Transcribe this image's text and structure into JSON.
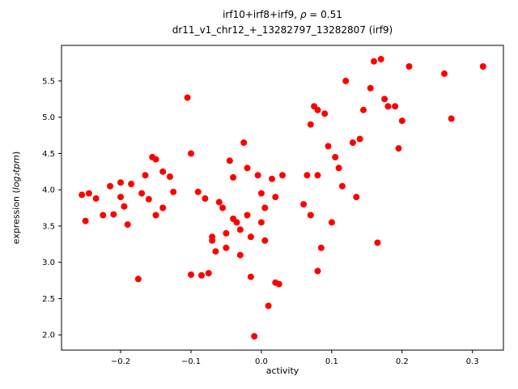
{
  "chart_data": {
    "type": "scatter",
    "title_line1_pre": "irf10+irf8+irf9, ",
    "title_rho": "ρ",
    "title_line1_post": " = 0.51",
    "title_line2": "dr11_v1_chr12_+_13282797_13282807 (irf9)",
    "xlabel": "activity",
    "ylabel_prefix": "expression (",
    "ylabel_math": "log₂tpm",
    "ylabel_suffix": ")",
    "xlim": [
      -0.284,
      0.344
    ],
    "ylim": [
      1.79,
      5.99
    ],
    "xticks": [
      -0.2,
      -0.1,
      0.0,
      0.1,
      0.2,
      0.3
    ],
    "xtick_labels": [
      "−0.2",
      "−0.1",
      "0.0",
      "0.1",
      "0.2",
      "0.3"
    ],
    "yticks": [
      2.0,
      2.5,
      3.0,
      3.5,
      4.0,
      4.5,
      5.0,
      5.5
    ],
    "ytick_labels": [
      "2.0",
      "2.5",
      "3.0",
      "3.5",
      "4.0",
      "4.5",
      "5.0",
      "5.5"
    ],
    "marker_color": "#ff0000",
    "marker_radius": 4,
    "grid": false,
    "legend": null,
    "points": [
      [
        -0.255,
        3.93
      ],
      [
        -0.25,
        3.57
      ],
      [
        -0.245,
        3.95
      ],
      [
        -0.235,
        3.88
      ],
      [
        -0.225,
        3.65
      ],
      [
        -0.215,
        4.05
      ],
      [
        -0.21,
        3.66
      ],
      [
        -0.2,
        3.9
      ],
      [
        -0.2,
        4.1
      ],
      [
        -0.195,
        3.77
      ],
      [
        -0.19,
        3.52
      ],
      [
        -0.185,
        4.08
      ],
      [
        -0.175,
        2.77
      ],
      [
        -0.17,
        3.95
      ],
      [
        -0.165,
        4.2
      ],
      [
        -0.16,
        3.87
      ],
      [
        -0.155,
        4.45
      ],
      [
        -0.15,
        4.42
      ],
      [
        -0.15,
        3.65
      ],
      [
        -0.14,
        4.25
      ],
      [
        -0.14,
        3.75
      ],
      [
        -0.13,
        4.18
      ],
      [
        -0.125,
        3.97
      ],
      [
        -0.105,
        5.27
      ],
      [
        -0.1,
        4.5
      ],
      [
        -0.1,
        2.83
      ],
      [
        -0.09,
        3.97
      ],
      [
        -0.085,
        2.82
      ],
      [
        -0.08,
        3.88
      ],
      [
        -0.075,
        2.85
      ],
      [
        -0.07,
        3.3
      ],
      [
        -0.07,
        3.35
      ],
      [
        -0.065,
        3.15
      ],
      [
        -0.06,
        3.83
      ],
      [
        -0.055,
        3.75
      ],
      [
        -0.05,
        3.4
      ],
      [
        -0.05,
        3.2
      ],
      [
        -0.045,
        4.4
      ],
      [
        -0.04,
        4.17
      ],
      [
        -0.04,
        3.6
      ],
      [
        -0.035,
        3.55
      ],
      [
        -0.03,
        3.45
      ],
      [
        -0.03,
        3.1
      ],
      [
        -0.025,
        4.65
      ],
      [
        -0.02,
        4.3
      ],
      [
        -0.02,
        3.65
      ],
      [
        -0.015,
        3.35
      ],
      [
        -0.015,
        2.8
      ],
      [
        -0.01,
        1.98
      ],
      [
        -0.005,
        4.2
      ],
      [
        0.0,
        3.95
      ],
      [
        0.0,
        3.55
      ],
      [
        0.005,
        3.75
      ],
      [
        0.005,
        3.3
      ],
      [
        0.01,
        2.4
      ],
      [
        0.015,
        4.15
      ],
      [
        0.02,
        3.9
      ],
      [
        0.02,
        2.72
      ],
      [
        0.025,
        2.7
      ],
      [
        0.03,
        4.2
      ],
      [
        0.06,
        3.8
      ],
      [
        0.065,
        4.2
      ],
      [
        0.07,
        3.65
      ],
      [
        0.07,
        4.9
      ],
      [
        0.075,
        5.15
      ],
      [
        0.08,
        5.1
      ],
      [
        0.08,
        4.2
      ],
      [
        0.08,
        2.88
      ],
      [
        0.085,
        3.2
      ],
      [
        0.09,
        5.05
      ],
      [
        0.095,
        4.6
      ],
      [
        0.1,
        3.55
      ],
      [
        0.105,
        4.45
      ],
      [
        0.11,
        4.3
      ],
      [
        0.115,
        4.05
      ],
      [
        0.12,
        5.5
      ],
      [
        0.13,
        4.65
      ],
      [
        0.135,
        3.9
      ],
      [
        0.14,
        4.7
      ],
      [
        0.145,
        5.1
      ],
      [
        0.155,
        5.4
      ],
      [
        0.16,
        5.77
      ],
      [
        0.165,
        3.27
      ],
      [
        0.17,
        5.8
      ],
      [
        0.175,
        5.25
      ],
      [
        0.18,
        5.15
      ],
      [
        0.19,
        5.15
      ],
      [
        0.195,
        4.57
      ],
      [
        0.2,
        4.95
      ],
      [
        0.21,
        5.7
      ],
      [
        0.26,
        5.6
      ],
      [
        0.27,
        4.98
      ],
      [
        0.315,
        5.7
      ]
    ]
  }
}
